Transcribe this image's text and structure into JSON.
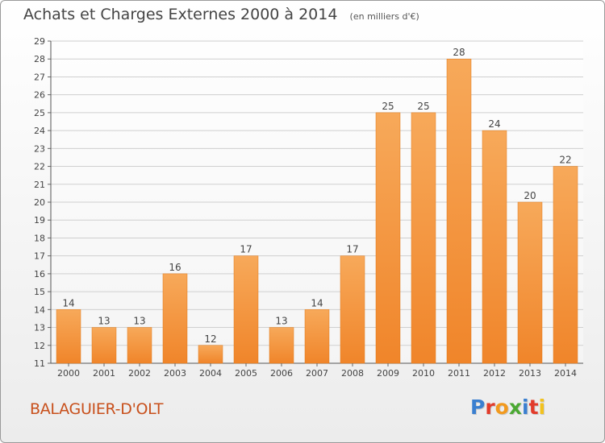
{
  "title": "Achats et Charges Externes 2000 à 2014",
  "subtitle": "(en milliers d'€)",
  "location": "BALAGUIER-D'OLT",
  "logo": {
    "text": "Proxiti",
    "letters": [
      {
        "ch": "P",
        "color": "#3a7fd0"
      },
      {
        "ch": "r",
        "color": "#e23b2a"
      },
      {
        "ch": "o",
        "color": "#f29a1e"
      },
      {
        "ch": "x",
        "color": "#4aa832"
      },
      {
        "ch": "i",
        "color": "#3a7fd0"
      },
      {
        "ch": "t",
        "color": "#e23b2a"
      },
      {
        "ch": "i",
        "color": "#f2c21e"
      }
    ]
  },
  "chart_data": {
    "type": "bar",
    "title": "Achats et Charges Externes 2000 à 2014",
    "subtitle": "(en milliers d'€)",
    "categories": [
      "2000",
      "2001",
      "2002",
      "2003",
      "2004",
      "2005",
      "2006",
      "2007",
      "2008",
      "2009",
      "2010",
      "2011",
      "2012",
      "2013",
      "2014"
    ],
    "values": [
      14,
      13,
      13,
      16,
      12,
      17,
      13,
      14,
      17,
      25,
      25,
      28,
      24,
      20,
      22
    ],
    "ylim": [
      11,
      29
    ],
    "yticks": [
      11,
      12,
      13,
      14,
      15,
      16,
      17,
      18,
      19,
      20,
      21,
      22,
      23,
      24,
      25,
      26,
      27,
      28,
      29
    ],
    "grid": true,
    "bar_color": "#f0852a",
    "bar_color_light": "#f7a95a",
    "grid_color": "#cfcfcf"
  }
}
